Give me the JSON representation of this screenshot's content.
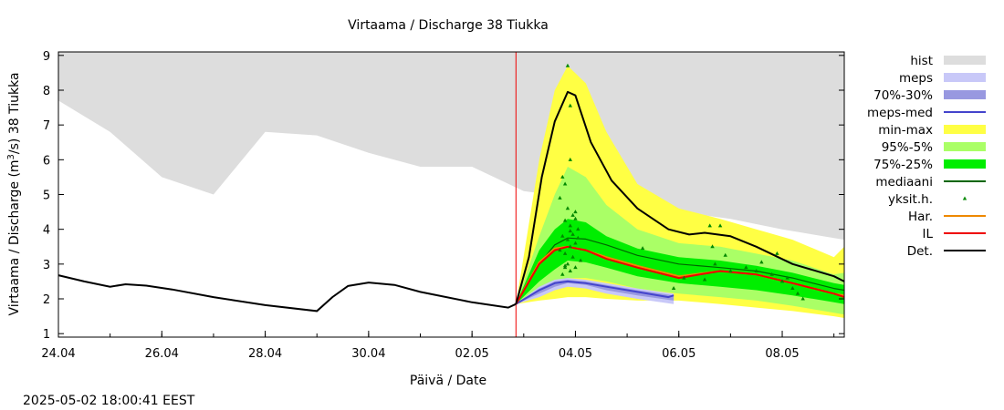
{
  "title": "Virtaama / Discharge  38 Tiukka",
  "xlabel": "Päivä / Date",
  "ylabel_prefix": "Virtaama / Discharge (m",
  "ylabel_sup": "3",
  "ylabel_suffix": "/s)  38 Tiukka",
  "timestamp": "2025-05-02 18:00:41 EEST",
  "chart_data": {
    "type": "area",
    "x_unit": "days since 24.04 00:00",
    "xlim": [
      0,
      15.2
    ],
    "ylim": [
      0.9,
      9.1
    ],
    "x_ticks": [
      {
        "x": 0,
        "label": "24.04"
      },
      {
        "x": 2,
        "label": "26.04"
      },
      {
        "x": 4,
        "label": "28.04"
      },
      {
        "x": 6,
        "label": "30.04"
      },
      {
        "x": 8,
        "label": "02.05"
      },
      {
        "x": 10,
        "label": "04.05"
      },
      {
        "x": 12,
        "label": "06.05"
      },
      {
        "x": 14,
        "label": "08.05"
      }
    ],
    "y_ticks": [
      1,
      2,
      3,
      4,
      5,
      6,
      7,
      8,
      9
    ],
    "forecast_start": 8.85,
    "legend": [
      {
        "label": "hist",
        "color": "#dddddd",
        "kind": "fill"
      },
      {
        "label": "meps",
        "color": "#c8c8f8",
        "kind": "fill"
      },
      {
        "label": "70%-30%",
        "color": "#9898e0",
        "kind": "fill"
      },
      {
        "label": "meps-med",
        "color": "#4444cc",
        "kind": "line"
      },
      {
        "label": "min-max",
        "color": "#ffff44",
        "kind": "fill"
      },
      {
        "label": "95%-5%",
        "color": "#aaff66",
        "kind": "fill"
      },
      {
        "label": "75%-25%",
        "color": "#00ee00",
        "kind": "fill"
      },
      {
        "label": "mediaani",
        "color": "#006600",
        "kind": "line"
      },
      {
        "label": "yksit.h.",
        "color": "#008800",
        "kind": "dot"
      },
      {
        "label": "Har.",
        "color": "#ee8800",
        "kind": "line"
      },
      {
        "label": "IL",
        "color": "#ee0000",
        "kind": "line"
      },
      {
        "label": "Det.",
        "color": "#000000",
        "kind": "line"
      }
    ],
    "hist": {
      "x": [
        0,
        1,
        2,
        3,
        4,
        5,
        6,
        7,
        8,
        9,
        10,
        11,
        12,
        13,
        14,
        15.2
      ],
      "lower": [
        7.7,
        6.8,
        5.5,
        5.0,
        6.8,
        6.7,
        6.2,
        5.8,
        5.8,
        5.1,
        4.9,
        4.7,
        4.5,
        4.3,
        4.0,
        3.7
      ],
      "upper": [
        9.1,
        9.1,
        9.1,
        9.1,
        9.1,
        9.1,
        9.1,
        9.1,
        9.1,
        9.1,
        9.1,
        9.1,
        9.1,
        9.1,
        9.1,
        9.1
      ]
    },
    "observed": {
      "x": [
        0,
        0.5,
        1,
        1.3,
        1.7,
        2.2,
        3,
        4,
        5,
        5.3,
        5.6,
        6,
        6.5,
        7,
        8,
        8.7,
        8.85
      ],
      "y": [
        2.68,
        2.5,
        2.35,
        2.42,
        2.38,
        2.27,
        2.05,
        1.82,
        1.65,
        2.05,
        2.37,
        2.47,
        2.4,
        2.2,
        1.9,
        1.75,
        1.85
      ]
    },
    "min_max": {
      "x": [
        8.85,
        9.3,
        9.6,
        9.85,
        10.2,
        10.6,
        11.2,
        12,
        12.8,
        13.5,
        14.2,
        15.0,
        15.2
      ],
      "lower": [
        1.85,
        1.95,
        2.0,
        2.05,
        2.05,
        2.0,
        1.95,
        1.95,
        1.85,
        1.75,
        1.65,
        1.5,
        1.45
      ],
      "upper": [
        1.85,
        6.0,
        8.0,
        8.7,
        8.2,
        6.8,
        5.3,
        4.6,
        4.3,
        4.0,
        3.7,
        3.2,
        3.5
      ]
    },
    "p95_5": {
      "x": [
        8.85,
        9.3,
        9.6,
        9.85,
        10.2,
        10.6,
        11.2,
        12,
        12.8,
        13.5,
        14.2,
        15.0,
        15.2
      ],
      "lower": [
        1.85,
        2.15,
        2.35,
        2.6,
        2.6,
        2.5,
        2.3,
        2.15,
        2.05,
        1.95,
        1.8,
        1.6,
        1.55
      ],
      "upper": [
        1.85,
        3.8,
        5.0,
        5.8,
        5.5,
        4.7,
        4.0,
        3.6,
        3.5,
        3.3,
        3.1,
        2.7,
        2.75
      ]
    },
    "p75_25": {
      "x": [
        8.85,
        9.3,
        9.6,
        9.85,
        10.2,
        10.6,
        11.2,
        12,
        12.8,
        13.5,
        14.2,
        15.0,
        15.2
      ],
      "lower": [
        1.85,
        2.5,
        2.85,
        3.1,
        3.05,
        2.9,
        2.65,
        2.45,
        2.35,
        2.25,
        2.1,
        1.9,
        1.85
      ],
      "upper": [
        1.85,
        3.4,
        4.0,
        4.3,
        4.2,
        3.8,
        3.45,
        3.2,
        3.1,
        2.95,
        2.75,
        2.45,
        2.4
      ]
    },
    "meps_band": {
      "x": [
        8.85,
        9.3,
        9.6,
        9.85,
        10.2,
        10.6,
        11.2,
        11.9
      ],
      "lower": [
        1.85,
        2.05,
        2.25,
        2.35,
        2.3,
        2.15,
        2.0,
        1.85
      ],
      "upper": [
        1.85,
        2.35,
        2.55,
        2.6,
        2.55,
        2.45,
        2.3,
        2.15
      ]
    },
    "meps_70_30": {
      "x": [
        8.85,
        9.3,
        9.6,
        9.85,
        10.2,
        10.6,
        11.2,
        11.9
      ],
      "lower": [
        1.85,
        2.15,
        2.35,
        2.45,
        2.4,
        2.25,
        2.1,
        1.95
      ],
      "upper": [
        1.85,
        2.3,
        2.5,
        2.55,
        2.5,
        2.4,
        2.25,
        2.1
      ]
    },
    "series": [
      {
        "name": "meps-med",
        "color": "#4444cc",
        "x": [
          8.85,
          9.3,
          9.6,
          9.85,
          10.2,
          10.6,
          11.2,
          11.8,
          11.9
        ],
        "y": [
          1.85,
          2.25,
          2.45,
          2.5,
          2.45,
          2.35,
          2.2,
          2.05,
          2.1
        ]
      },
      {
        "name": "mediaani",
        "color": "#006600",
        "x": [
          8.85,
          9.3,
          9.6,
          9.85,
          10.2,
          10.6,
          11.2,
          12,
          12.8,
          13.5,
          14.2,
          15.0,
          15.2
        ],
        "y": [
          1.85,
          3.0,
          3.55,
          3.75,
          3.72,
          3.55,
          3.25,
          3.0,
          2.9,
          2.8,
          2.6,
          2.3,
          2.25
        ]
      },
      {
        "name": "Har.",
        "color": "#ee8800",
        "x": [
          8.85,
          9.3,
          9.6,
          9.85,
          10.2,
          10.6,
          11.2,
          12,
          12.8,
          13.5,
          14.2,
          15.0,
          15.2
        ],
        "y": [
          1.85,
          3.05,
          3.45,
          3.5,
          3.4,
          3.2,
          2.95,
          2.65,
          2.8,
          2.7,
          2.45,
          2.15,
          2.1
        ]
      },
      {
        "name": "IL",
        "color": "#ee0000",
        "x": [
          8.85,
          9.3,
          9.6,
          9.85,
          10.2,
          10.6,
          11.2,
          12,
          12.8,
          13.5,
          14.2,
          15.0,
          15.2
        ],
        "y": [
          1.85,
          3.0,
          3.4,
          3.5,
          3.4,
          3.15,
          2.9,
          2.6,
          2.8,
          2.7,
          2.45,
          2.15,
          2.05
        ]
      },
      {
        "name": "Det.",
        "color": "#000000",
        "x": [
          8.85,
          9.1,
          9.35,
          9.6,
          9.85,
          10.0,
          10.3,
          10.7,
          11.2,
          11.8,
          12.2,
          12.5,
          13,
          13.5,
          14.2,
          15.0,
          15.2
        ],
        "y": [
          1.85,
          3.2,
          5.5,
          7.1,
          7.95,
          7.85,
          6.5,
          5.4,
          4.6,
          4.0,
          3.85,
          3.9,
          3.8,
          3.5,
          3.0,
          2.65,
          2.5
        ]
      }
    ],
    "yksit_h": {
      "x": [
        9.85,
        9.9,
        9.7,
        9.8,
        9.75,
        9.9,
        9.95,
        10.0,
        9.8,
        9.9,
        10.05,
        9.75,
        9.85,
        10.0,
        9.9,
        9.7,
        9.8,
        9.95,
        10.1,
        9.85,
        10.0,
        9.9,
        9.75,
        9.8,
        10.0,
        9.9,
        9.85,
        9.95,
        10.05,
        9.8,
        12.6,
        12.8,
        12.65,
        12.9,
        12.7,
        13.0,
        13.3,
        13.6,
        13.8,
        14.0,
        14.2,
        14.4,
        13.9,
        14.1,
        14.3,
        13.5,
        12.5,
        12.1,
        11.9,
        11.3
      ],
      "y": [
        8.7,
        7.55,
        4.9,
        5.3,
        5.5,
        6.0,
        4.4,
        4.3,
        4.25,
        4.1,
        4.0,
        3.8,
        3.7,
        3.6,
        3.5,
        3.4,
        3.3,
        3.2,
        3.1,
        3.0,
        2.9,
        2.8,
        2.7,
        2.9,
        4.5,
        3.95,
        4.6,
        3.85,
        3.75,
        2.95,
        4.1,
        4.1,
        3.5,
        3.25,
        3.0,
        2.8,
        2.9,
        3.05,
        2.7,
        2.5,
        2.3,
        2.0,
        3.3,
        2.6,
        2.15,
        2.8,
        2.55,
        2.6,
        2.3,
        3.45
      ]
    }
  }
}
